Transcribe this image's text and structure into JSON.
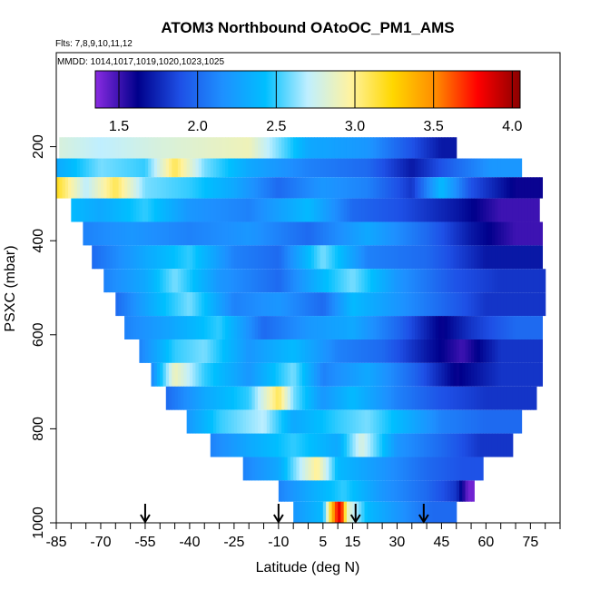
{
  "chart_data": {
    "type": "heatmap",
    "title": "ATOM3 Northbound OAtoOC_PM1_AMS",
    "flights_note": "Flts: 7,8,9,10,11,12",
    "dates_note": "MMDD: 1014,1017,1019,1020,1023,1025",
    "xlabel": "Latitude (deg N)",
    "ylabel": "PSXC (mbar)",
    "xlim": [
      -85,
      85
    ],
    "ylim": [
      1000,
      0
    ],
    "x_tick_labels": [
      "-85",
      "-70",
      "-55",
      "-40",
      "-25",
      "-10",
      "5",
      "15",
      "30",
      "45",
      "60",
      "75"
    ],
    "x_tick_values": [
      -85,
      -70,
      -55,
      -40,
      -25,
      -10,
      5,
      15,
      30,
      45,
      60,
      75
    ],
    "y_tick_labels": [
      "200",
      "400",
      "600",
      "800",
      "1000"
    ],
    "y_tick_values": [
      200,
      400,
      600,
      800,
      1000
    ],
    "colorbar": {
      "range": [
        1.35,
        4.05
      ],
      "tick_labels": [
        "1.5",
        "2.0",
        "2.5",
        "3.0",
        "3.5",
        "4.0"
      ],
      "tick_values": [
        1.5,
        2.0,
        2.5,
        3.0,
        3.5,
        4.0
      ],
      "colors": [
        "#8a2be2",
        "#00008b",
        "#1e50e6",
        "#1e90ff",
        "#00bfff",
        "#bfefff",
        "#fff3a0",
        "#ffd700",
        "#ff8c00",
        "#ff0000",
        "#8b0000"
      ]
    },
    "arrows_lat": [
      -55,
      -10,
      16,
      39
    ],
    "bands": [
      {
        "p_top": 180,
        "p_bot": 225,
        "x0": -84,
        "x1": 50,
        "segs": [
          [
            -84,
            2.8
          ],
          [
            -70,
            2.7
          ],
          [
            -50,
            2.8
          ],
          [
            -20,
            2.9
          ],
          [
            0,
            2.3
          ],
          [
            20,
            2.2
          ],
          [
            35,
            1.9
          ],
          [
            45,
            1.7
          ]
        ]
      },
      {
        "p_top": 225,
        "p_bot": 265,
        "x0": -85,
        "x1": 72,
        "segs": [
          [
            -85,
            2.3
          ],
          [
            -70,
            2.6
          ],
          [
            -55,
            2.5
          ],
          [
            -45,
            3.1
          ],
          [
            -35,
            2.6
          ],
          [
            -20,
            2.3
          ],
          [
            0,
            2.1
          ],
          [
            20,
            2.0
          ],
          [
            35,
            1.7
          ],
          [
            50,
            2.0
          ],
          [
            62,
            2.2
          ]
        ]
      },
      {
        "p_top": 265,
        "p_bot": 310,
        "x0": -85,
        "x1": 79,
        "segs": [
          [
            -85,
            3.2
          ],
          [
            -75,
            2.7
          ],
          [
            -65,
            3.1
          ],
          [
            -55,
            2.6
          ],
          [
            -40,
            2.5
          ],
          [
            -25,
            2.3
          ],
          [
            -10,
            2.0
          ],
          [
            5,
            2.2
          ],
          [
            20,
            2.1
          ],
          [
            35,
            1.8
          ],
          [
            45,
            2.4
          ],
          [
            55,
            1.9
          ],
          [
            70,
            1.6
          ]
        ]
      },
      {
        "p_top": 310,
        "p_bot": 360,
        "x0": -80,
        "x1": 78,
        "segs": [
          [
            -80,
            2.4
          ],
          [
            -70,
            2.3
          ],
          [
            -55,
            2.5
          ],
          [
            -40,
            2.2
          ],
          [
            -20,
            2.1
          ],
          [
            0,
            2.4
          ],
          [
            15,
            2.0
          ],
          [
            30,
            1.9
          ],
          [
            50,
            1.7
          ],
          [
            65,
            1.5
          ]
        ]
      },
      {
        "p_top": 360,
        "p_bot": 410,
        "x0": -76,
        "x1": 79,
        "segs": [
          [
            -76,
            2.1
          ],
          [
            -60,
            2.2
          ],
          [
            -40,
            2.1
          ],
          [
            -20,
            2.2
          ],
          [
            0,
            2.0
          ],
          [
            20,
            2.3
          ],
          [
            40,
            2.0
          ],
          [
            55,
            1.7
          ],
          [
            70,
            1.5
          ]
        ]
      },
      {
        "p_top": 410,
        "p_bot": 460,
        "x0": -73,
        "x1": 79,
        "segs": [
          [
            -73,
            2.0
          ],
          [
            -55,
            2.3
          ],
          [
            -40,
            2.5
          ],
          [
            -25,
            2.1
          ],
          [
            -10,
            2.0
          ],
          [
            5,
            2.6
          ],
          [
            20,
            2.1
          ],
          [
            40,
            2.0
          ],
          [
            60,
            1.7
          ]
        ]
      },
      {
        "p_top": 460,
        "p_bot": 510,
        "x0": -69,
        "x1": 80,
        "segs": [
          [
            -69,
            2.1
          ],
          [
            -55,
            2.3
          ],
          [
            -45,
            2.6
          ],
          [
            -30,
            2.2
          ],
          [
            -10,
            2.0
          ],
          [
            5,
            2.4
          ],
          [
            15,
            2.6
          ],
          [
            30,
            2.2
          ],
          [
            50,
            1.9
          ],
          [
            65,
            1.8
          ]
        ]
      },
      {
        "p_top": 510,
        "p_bot": 560,
        "x0": -65,
        "x1": 80,
        "segs": [
          [
            -65,
            2.0
          ],
          [
            -50,
            2.4
          ],
          [
            -40,
            2.6
          ],
          [
            -25,
            2.1
          ],
          [
            -10,
            2.2
          ],
          [
            5,
            2.0
          ],
          [
            15,
            2.4
          ],
          [
            30,
            2.2
          ],
          [
            45,
            2.0
          ],
          [
            60,
            1.8
          ]
        ]
      },
      {
        "p_top": 560,
        "p_bot": 610,
        "x0": -62,
        "x1": 79,
        "segs": [
          [
            -62,
            2.1
          ],
          [
            -45,
            2.3
          ],
          [
            -30,
            2.5
          ],
          [
            -15,
            2.0
          ],
          [
            0,
            2.2
          ],
          [
            15,
            2.3
          ],
          [
            30,
            2.0
          ],
          [
            45,
            1.6
          ],
          [
            55,
            1.8
          ],
          [
            70,
            2.0
          ]
        ]
      },
      {
        "p_top": 610,
        "p_bot": 660,
        "x0": -57,
        "x1": 79,
        "segs": [
          [
            -57,
            2.1
          ],
          [
            -45,
            2.5
          ],
          [
            -35,
            2.6
          ],
          [
            -20,
            2.2
          ],
          [
            -5,
            2.4
          ],
          [
            10,
            2.1
          ],
          [
            25,
            2.0
          ],
          [
            40,
            1.7
          ],
          [
            52,
            1.5
          ],
          [
            65,
            1.8
          ]
        ]
      },
      {
        "p_top": 660,
        "p_bot": 710,
        "x0": -53,
        "x1": 79,
        "segs": [
          [
            -53,
            2.1
          ],
          [
            -45,
            2.9
          ],
          [
            -35,
            2.5
          ],
          [
            -20,
            2.2
          ],
          [
            -5,
            2.6
          ],
          [
            5,
            2.1
          ],
          [
            20,
            2.3
          ],
          [
            35,
            2.0
          ],
          [
            50,
            1.6
          ],
          [
            65,
            1.8
          ]
        ]
      },
      {
        "p_top": 710,
        "p_bot": 760,
        "x0": -48,
        "x1": 77,
        "segs": [
          [
            -48,
            2.0
          ],
          [
            -35,
            2.3
          ],
          [
            -20,
            2.5
          ],
          [
            -10,
            3.1
          ],
          [
            -5,
            2.6
          ],
          [
            5,
            2.2
          ],
          [
            15,
            2.4
          ],
          [
            30,
            2.1
          ],
          [
            45,
            1.9
          ],
          [
            60,
            1.8
          ]
        ]
      },
      {
        "p_top": 760,
        "p_bot": 810,
        "x0": -41,
        "x1": 72,
        "segs": [
          [
            -41,
            2.2
          ],
          [
            -30,
            2.5
          ],
          [
            -15,
            2.7
          ],
          [
            -5,
            2.3
          ],
          [
            10,
            2.5
          ],
          [
            20,
            2.6
          ],
          [
            30,
            2.4
          ],
          [
            45,
            2.1
          ],
          [
            60,
            2.0
          ]
        ]
      },
      {
        "p_top": 810,
        "p_bot": 860,
        "x0": -33,
        "x1": 69,
        "segs": [
          [
            -33,
            2.1
          ],
          [
            -20,
            2.3
          ],
          [
            -5,
            2.5
          ],
          [
            10,
            2.3
          ],
          [
            18,
            2.8
          ],
          [
            30,
            2.2
          ],
          [
            45,
            2.0
          ],
          [
            58,
            1.8
          ]
        ]
      },
      {
        "p_top": 860,
        "p_bot": 910,
        "x0": -22,
        "x1": 59,
        "segs": [
          [
            -22,
            2.1
          ],
          [
            -10,
            2.3
          ],
          [
            3,
            3.0
          ],
          [
            10,
            2.4
          ],
          [
            25,
            2.2
          ],
          [
            40,
            2.0
          ],
          [
            52,
            1.9
          ]
        ]
      },
      {
        "p_top": 910,
        "p_bot": 955,
        "x0": -10,
        "x1": 56,
        "segs": [
          [
            -10,
            2.1
          ],
          [
            0,
            2.3
          ],
          [
            12,
            2.5
          ],
          [
            25,
            2.2
          ],
          [
            40,
            2.0
          ],
          [
            50,
            1.8
          ],
          [
            54,
            1.4
          ]
        ]
      },
      {
        "p_top": 955,
        "p_bot": 1000,
        "x0": -5,
        "x1": 50,
        "segs": [
          [
            -5,
            2.2
          ],
          [
            5,
            2.4
          ],
          [
            9,
            3.6
          ],
          [
            11,
            3.9
          ],
          [
            13,
            2.9
          ],
          [
            20,
            2.4
          ],
          [
            30,
            2.2
          ],
          [
            42,
            2.0
          ]
        ]
      }
    ]
  }
}
